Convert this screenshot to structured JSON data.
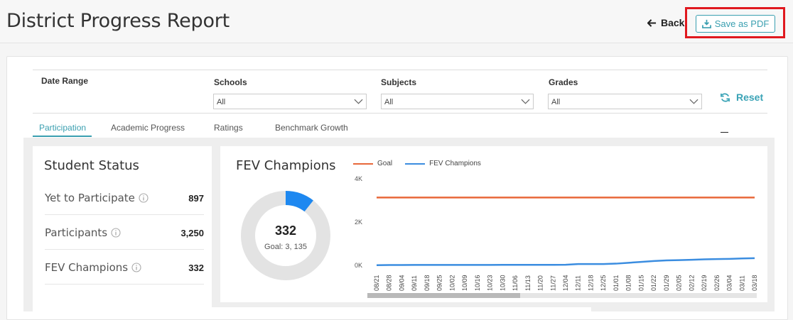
{
  "header": {
    "title": "District Progress Report",
    "back_label": "Back",
    "save_label": "Save as PDF"
  },
  "filters": {
    "date_range_label": "Date Range",
    "schools_label": "Schools",
    "schools_value": "All",
    "subjects_label": "Subjects",
    "subjects_value": "All",
    "grades_label": "Grades",
    "grades_value": "All",
    "reset_label": "Reset"
  },
  "tabs": [
    {
      "label": "Participation",
      "active": true
    },
    {
      "label": "Academic Progress",
      "active": false
    },
    {
      "label": "Ratings",
      "active": false
    },
    {
      "label": "Benchmark Growth",
      "active": false
    }
  ],
  "student_status": {
    "title": "Student Status",
    "rows": [
      {
        "label": "Yet to Participate",
        "value": "897"
      },
      {
        "label": "Participants",
        "value": "3,250"
      },
      {
        "label": "FEV Champions",
        "value": "332"
      }
    ]
  },
  "fev": {
    "title": "FEV Champions",
    "donut_value": "332",
    "donut_goal": "Goal: 3, 135"
  },
  "colors": {
    "accent": "#3a9fb0",
    "goal_line": "#e8683a",
    "champions_line": "#3b8de0",
    "donut_fill": "#1e88f0",
    "donut_track": "#e3e3e3"
  },
  "chart_data": {
    "type": "line",
    "title": "",
    "xlabel": "",
    "ylabel": "",
    "y_ticks": [
      "4K",
      "2K",
      "0K"
    ],
    "ylim": [
      0,
      4000
    ],
    "x": [
      "08/21",
      "08/28",
      "09/04",
      "09/11",
      "09/18",
      "09/25",
      "10/02",
      "10/09",
      "10/16",
      "10/23",
      "10/30",
      "11/06",
      "11/13",
      "11/20",
      "11/27",
      "12/04",
      "12/11",
      "12/18",
      "12/25",
      "01/01",
      "01/08",
      "01/15",
      "01/22",
      "01/29",
      "02/05",
      "02/12",
      "02/19",
      "02/26",
      "03/04",
      "03/11",
      "03/18"
    ],
    "series": [
      {
        "name": "Goal",
        "values": [
          3135,
          3135,
          3135,
          3135,
          3135,
          3135,
          3135,
          3135,
          3135,
          3135,
          3135,
          3135,
          3135,
          3135,
          3135,
          3135,
          3135,
          3135,
          3135,
          3135,
          3135,
          3135,
          3135,
          3135,
          3135,
          3135,
          3135,
          3135,
          3135,
          3135,
          3135
        ]
      },
      {
        "name": "FEV Champions",
        "values": [
          10,
          15,
          15,
          20,
          20,
          20,
          20,
          20,
          20,
          20,
          25,
          25,
          25,
          25,
          25,
          30,
          60,
          60,
          60,
          80,
          120,
          160,
          200,
          230,
          240,
          260,
          280,
          290,
          300,
          320,
          332
        ]
      }
    ],
    "grid": false,
    "legend": "top-left"
  }
}
